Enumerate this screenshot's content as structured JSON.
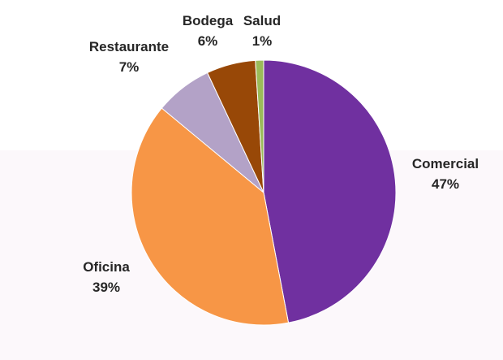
{
  "chart_data": {
    "type": "pie",
    "title": "",
    "slices": [
      {
        "category": "Comercial",
        "value": 47,
        "label": "47%",
        "color": "#7030a0"
      },
      {
        "category": "Oficina",
        "value": 39,
        "label": "39%",
        "color": "#f79646"
      },
      {
        "category": "Restaurante",
        "value": 7,
        "label": "7%",
        "color": "#b3a2c7"
      },
      {
        "category": "Bodega",
        "value": 6,
        "label": "6%",
        "color": "#984807"
      },
      {
        "category": "Salud",
        "value": 1,
        "label": "1%",
        "color": "#9bbb59"
      }
    ],
    "start_angle_deg": 0,
    "direction": "clockwise",
    "legend": "none",
    "data_labels": "outside"
  }
}
